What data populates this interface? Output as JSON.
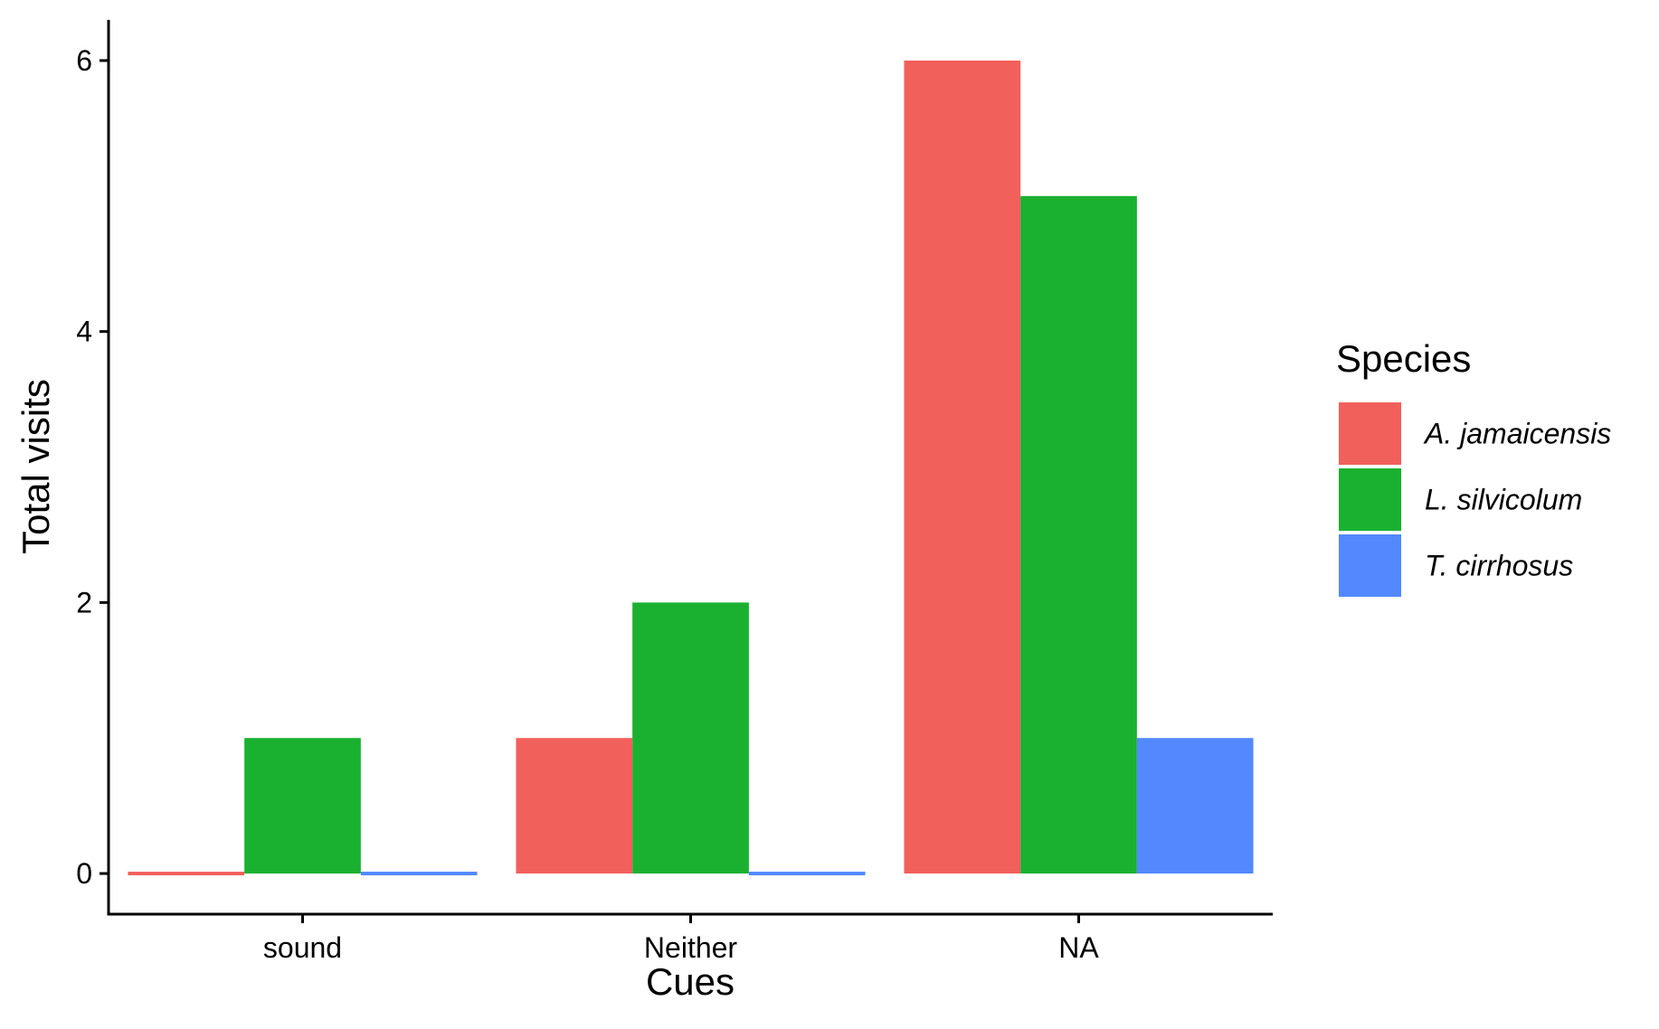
{
  "chart_data": {
    "type": "bar",
    "title": "",
    "xlabel": "Cues",
    "ylabel": "Total visits",
    "categories": [
      "sound",
      "Neither",
      "NA"
    ],
    "series": [
      {
        "name": "A. jamaicensis",
        "values": [
          0,
          1,
          6
        ],
        "color": "#F2605C"
      },
      {
        "name": "L. silvicolum",
        "values": [
          1,
          2,
          5
        ],
        "color": "#1AB131"
      },
      {
        "name": "T. cirrhosus",
        "values": [
          0,
          0,
          1
        ],
        "color": "#5388FF"
      }
    ],
    "ylim": [
      -0.3,
      6.3
    ],
    "yticks": [
      0,
      2,
      4,
      6
    ],
    "legend": {
      "title": "Species",
      "position": "right"
    },
    "grid": false
  }
}
